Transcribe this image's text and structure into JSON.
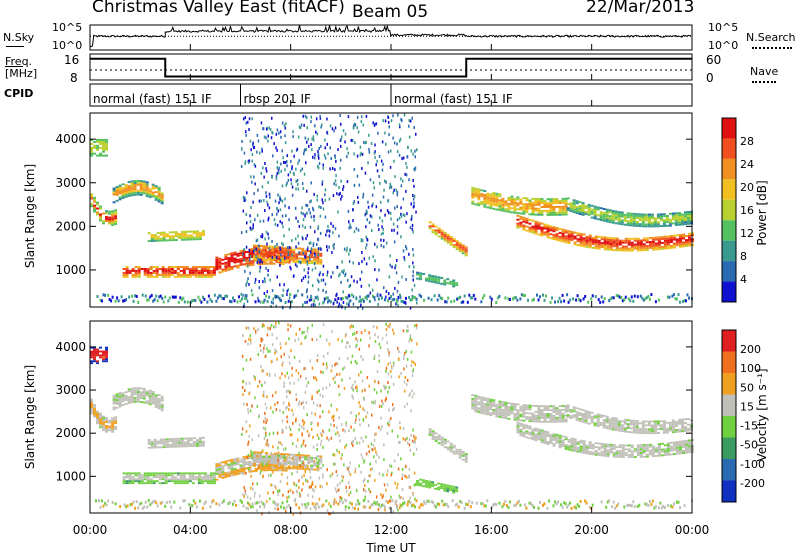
{
  "header": {
    "title": "Christmas Valley East (fitACF)",
    "beam": "Beam 05",
    "date": "22/Mar/2013"
  },
  "labels": {
    "nsky": "N.Sky",
    "nsearch": "N.Search",
    "freq_line1": "Freq.",
    "freq_line2": "[MHz]",
    "nave": "Nave",
    "cpid": "CPID",
    "xlabel": "Time UT"
  },
  "chart_data": [
    {
      "type": "line",
      "name": "noise-panel",
      "x_range": [
        0,
        24
      ],
      "left_ticks": [
        "10^5",
        "10^0"
      ],
      "right_ticks": [
        "10^5",
        "10^0"
      ],
      "nsky_level_segments": [
        {
          "x0": 0.0,
          "x1": 0.15,
          "y": 0.15
        },
        {
          "x0": 0.15,
          "x1": 3.0,
          "y": 0.55
        },
        {
          "x0": 3.0,
          "x1": 12.0,
          "y": 0.75
        },
        {
          "x0": 12.0,
          "x1": 15.0,
          "y": 0.6
        },
        {
          "x0": 15.0,
          "x1": 24.0,
          "y": 0.55
        }
      ]
    },
    {
      "type": "line",
      "name": "frequency-panel",
      "x_range": [
        0,
        24
      ],
      "left_ticks": [
        "16",
        "8"
      ],
      "right_ticks": [
        "60",
        "0"
      ],
      "freq_segments": [
        {
          "x0": 0.0,
          "x1": 3.0,
          "mhz": 16.0
        },
        {
          "x0": 3.0,
          "x1": 15.0,
          "mhz": 8.5
        },
        {
          "x0": 15.0,
          "x1": 24.0,
          "mhz": 16.0
        }
      ]
    },
    {
      "type": "table",
      "name": "cpid-panel",
      "segments": [
        {
          "x0": 0.0,
          "x1": 6.0,
          "label": "normal (fast) 151 IF"
        },
        {
          "x0": 6.0,
          "x1": 12.0,
          "label": "rbsp 201 IF"
        },
        {
          "x0": 12.0,
          "x1": 24.0,
          "label": "normal (fast) 151 IF"
        }
      ]
    },
    {
      "type": "heatmap",
      "name": "power",
      "ylabel": "Slant Range [km]",
      "ylim": [
        150,
        4600
      ],
      "yticks": [
        "1000",
        "2000",
        "3000",
        "4000"
      ],
      "colorbar_label": "Power [dB]",
      "colorbar_ticks": [
        "4",
        "8",
        "12",
        "16",
        "20",
        "24",
        "28"
      ],
      "colors": [
        "#1010d0",
        "#2a6ab0",
        "#3a9a90",
        "#55c060",
        "#b8d030",
        "#f0c020",
        "#f09020",
        "#f05020",
        "#e01010"
      ]
    },
    {
      "type": "heatmap",
      "name": "velocity",
      "ylabel": "Slant Range [km]",
      "ylim": [
        150,
        4600
      ],
      "yticks": [
        "1000",
        "2000",
        "3000",
        "4000"
      ],
      "colorbar_label": "Velocity [m s⁻¹]",
      "colorbar_ticks": [
        "200",
        "100",
        "50",
        "15",
        "-15",
        "-50",
        "-100",
        "-200"
      ],
      "colors": [
        "#1030c0",
        "#2a6ab0",
        "#3a9a60",
        "#70d040",
        "#c0c0b8",
        "#f0a020",
        "#f07020",
        "#e02020"
      ]
    }
  ],
  "xaxis": {
    "ticks": [
      "00:00",
      "04:00",
      "08:00",
      "12:00",
      "16:00",
      "20:00",
      "00:00"
    ],
    "values": [
      0,
      4,
      8,
      12,
      16,
      20,
      24
    ]
  }
}
